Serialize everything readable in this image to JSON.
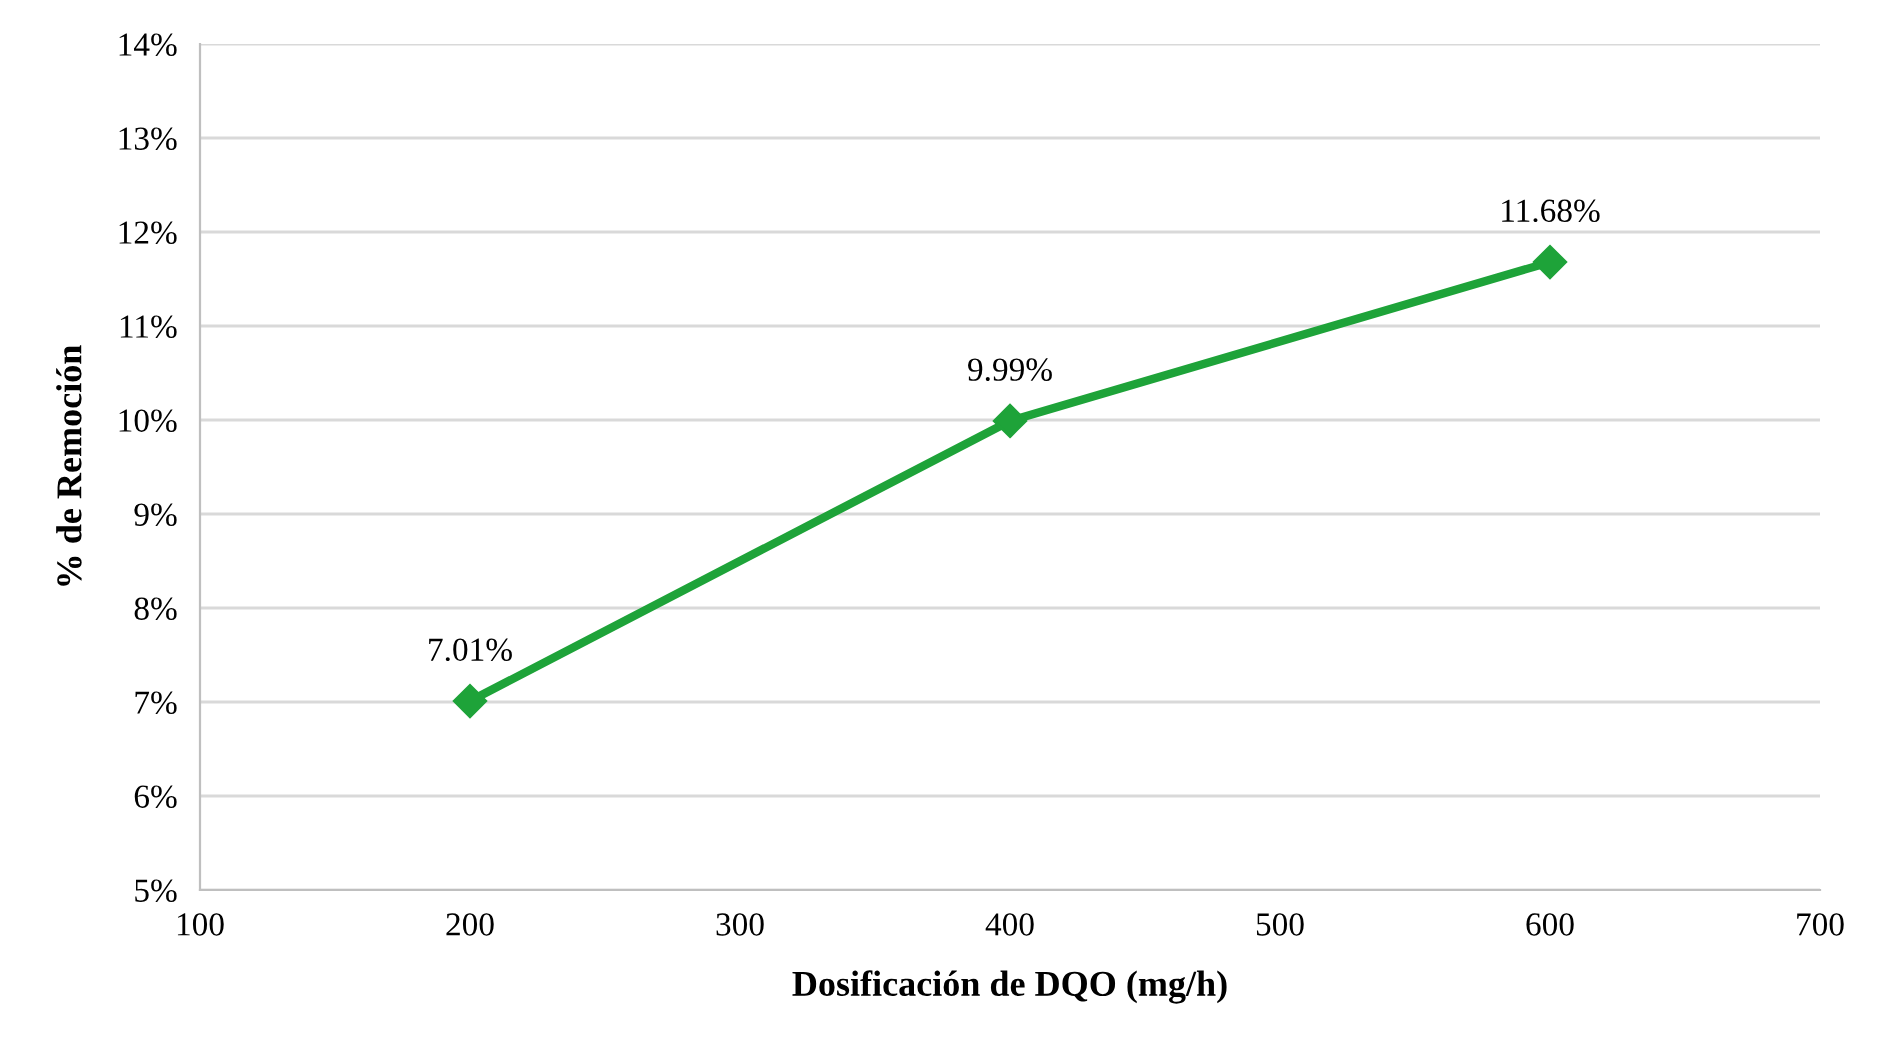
{
  "chart_data": {
    "type": "line",
    "xlabel": "Dosificación de DQO (mg/h)",
    "ylabel": "% de Remoción",
    "x": [
      200,
      400,
      600
    ],
    "series": [
      {
        "color": "#1ea339",
        "values": [
          7.01,
          9.99,
          11.68
        ],
        "value_labels": [
          "7.01%",
          "9.99%",
          "11.68%"
        ]
      }
    ],
    "xlim": [
      100,
      700
    ],
    "xticks": [
      100,
      200,
      300,
      400,
      500,
      600,
      700
    ],
    "ylim": [
      5,
      14
    ],
    "yticks": [
      {
        "value": 5,
        "label": "5%"
      },
      {
        "value": 6,
        "label": "6%"
      },
      {
        "value": 7,
        "label": "7%"
      },
      {
        "value": 8,
        "label": "8%"
      },
      {
        "value": 9,
        "label": "9%"
      },
      {
        "value": 10,
        "label": "10%"
      },
      {
        "value": 11,
        "label": "11%"
      },
      {
        "value": 12,
        "label": "12%"
      },
      {
        "value": 13,
        "label": "13%"
      },
      {
        "value": 14,
        "label": "14%"
      }
    ],
    "grid": "y",
    "marker": "diamond",
    "line_style": "solid",
    "legend": false
  }
}
